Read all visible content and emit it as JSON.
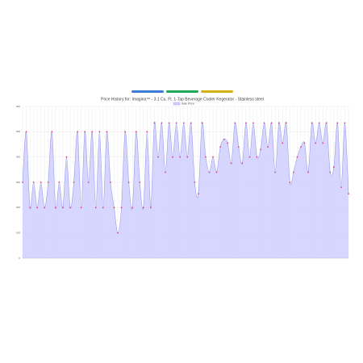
{
  "chart_data": {
    "type": "area",
    "title": "Price History for: Imagina™ - 3.1 Cu. Ft. 1-Tap Beverage Cooler Kegerator - Stainless steel",
    "series": [
      {
        "name": "Sale Price",
        "color": "#9c9cf0",
        "fill": "#cfcfff",
        "point_color": "#e0407a",
        "values": [
          300,
          500,
          200,
          300,
          200,
          300,
          200,
          300,
          500,
          200,
          300,
          200,
          400,
          200,
          300,
          500,
          200,
          500,
          300,
          500,
          200,
          500,
          200,
          500,
          300,
          200,
          100,
          200,
          500,
          300,
          200,
          500,
          300,
          200,
          500,
          200,
          535,
          400,
          535,
          340,
          535,
          400,
          535,
          400,
          535,
          400,
          535,
          300,
          255,
          535,
          400,
          340,
          400,
          340,
          440,
          470,
          455,
          375,
          535,
          440,
          375,
          535,
          400,
          535,
          400,
          430,
          535,
          440,
          535,
          340,
          535,
          455,
          535,
          300,
          340,
          400,
          440,
          455,
          340,
          535,
          455,
          535,
          455,
          535,
          340,
          360,
          535,
          280,
          535,
          255
        ]
      }
    ],
    "ylim": [
      0,
      600
    ],
    "yticks": [
      0,
      100,
      200,
      300,
      400,
      500,
      600
    ],
    "grid": true
  }
}
